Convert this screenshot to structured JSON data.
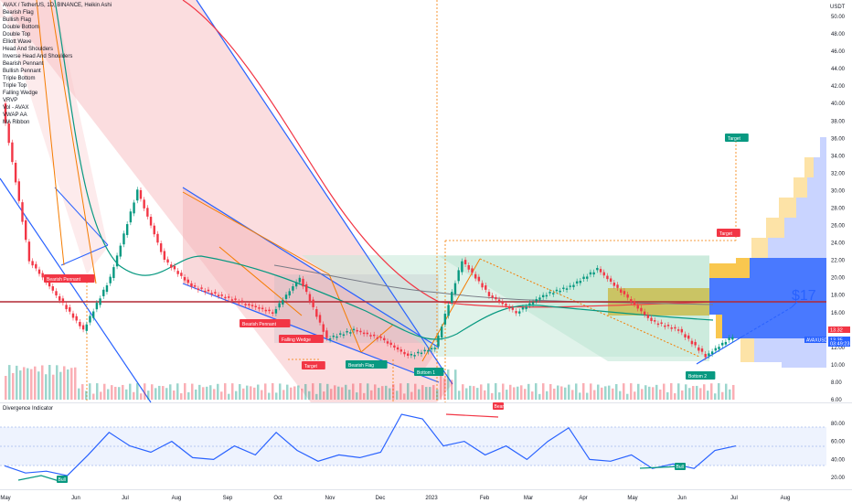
{
  "header": {
    "title": "AVAX / TetherUS, 1D, BINANCE, Heikin Ashi"
  },
  "indicators": [
    "Bearish Flag",
    "Bullish Flag",
    "Double Bottom",
    "Double Top",
    "Elliott Wave",
    "Head And Shoulders",
    "Inverse Head And Shoulders",
    "Bearish Pennant",
    "Bullish Pennant",
    "Triple Bottom",
    "Triple Top",
    "Falling Wedge",
    "VRVP",
    "Vol - AVAX",
    "VWAP AA",
    "MA Ribbon"
  ],
  "price_axis": {
    "currency": "USDT",
    "ticks": [
      "50.00",
      "48.00",
      "46.00",
      "44.00",
      "42.00",
      "40.00",
      "38.00",
      "36.00",
      "34.00",
      "32.00",
      "30.00",
      "28.00",
      "26.00",
      "24.00",
      "22.00",
      "20.00",
      "18.00",
      "16.00",
      "14.00",
      "12.00",
      "10.00",
      "8.00",
      "6.00"
    ],
    "badges": [
      {
        "text": "13.32",
        "color": "#f23645"
      },
      {
        "text": "AVAXUSDT",
        "color": "#2962ff"
      },
      {
        "text": "13.35",
        "color": "#2962ff"
      },
      {
        "text": "03:49:23",
        "color": "#2962ff"
      }
    ]
  },
  "osc_axis": {
    "ticks": [
      "80.00",
      "60.00",
      "40.00",
      "20.00"
    ]
  },
  "time_axis": {
    "labels": [
      "May",
      "Jun",
      "Jul",
      "Aug",
      "Sep",
      "Oct",
      "Nov",
      "Dec",
      "2023",
      "Feb",
      "Mar",
      "Apr",
      "May",
      "Jun",
      "Jul",
      "Aug"
    ]
  },
  "annotations": {
    "price_target_text": "$17",
    "labels": [
      {
        "text": "Bearish Pennant",
        "color": "#f23645"
      },
      {
        "text": "Bearish Pennant",
        "color": "#f23645"
      },
      {
        "text": "Falling Wedge",
        "color": "#f23645"
      },
      {
        "text": "Target",
        "color": "#f23645"
      },
      {
        "text": "Bearish Flag",
        "color": "#089981"
      },
      {
        "text": "Bottom 1",
        "color": "#089981"
      },
      {
        "text": "Target",
        "color": "#089981"
      },
      {
        "text": "Target",
        "color": "#f23645"
      },
      {
        "text": "Bottom 2",
        "color": "#089981"
      }
    ]
  },
  "oscillator": {
    "title": "Divergence Indicator",
    "labels": [
      {
        "text": "Bull",
        "color": "#089981"
      },
      {
        "text": "Bear",
        "color": "#f23645"
      },
      {
        "text": "Bull",
        "color": "#089981"
      }
    ]
  },
  "chart_data": {
    "type": "line",
    "symbol": "AVAXUSDT",
    "interval": "1D",
    "exchange": "BINANCE",
    "candle_type": "Heikin Ashi",
    "ylim": [
      6,
      50
    ],
    "x_ticks": [
      "May",
      "Jun",
      "Jul",
      "Aug",
      "Sep",
      "Oct",
      "Nov",
      "Dec",
      "2023",
      "Feb",
      "Mar",
      "Apr",
      "May",
      "Jun",
      "Jul",
      "Aug"
    ],
    "series": [
      {
        "values": [
          {
            "x": "May",
            "y": 40
          },
          {
            "x": "Jun",
            "y": 22
          },
          {
            "x": "Jun",
            "y": 18
          },
          {
            "x": "Jul",
            "y": 14
          },
          {
            "x": "Jul",
            "y": 20
          },
          {
            "x": "Aug",
            "y": 30
          },
          {
            "x": "Aug",
            "y": 22
          },
          {
            "x": "Sep",
            "y": 19
          },
          {
            "x": "Sep",
            "y": 18
          },
          {
            "x": "Oct",
            "y": 17
          },
          {
            "x": "Oct",
            "y": 16
          },
          {
            "x": "Nov",
            "y": 20
          },
          {
            "x": "Nov",
            "y": 13
          },
          {
            "x": "Dec",
            "y": 14
          },
          {
            "x": "Dec",
            "y": 13
          },
          {
            "x": "2023",
            "y": 11
          },
          {
            "x": "2023",
            "y": 12
          },
          {
            "x": "Feb",
            "y": 22
          },
          {
            "x": "Feb",
            "y": 18
          },
          {
            "x": "Mar",
            "y": 16
          },
          {
            "x": "Mar",
            "y": 18
          },
          {
            "x": "Apr",
            "y": 19
          },
          {
            "x": "Apr",
            "y": 21
          },
          {
            "x": "May",
            "y": 18
          },
          {
            "x": "May",
            "y": 15
          },
          {
            "x": "Jun",
            "y": 14
          },
          {
            "x": "Jun",
            "y": 11
          },
          {
            "x": "Jul",
            "y": 13.3
          }
        ]
      }
    ],
    "horizontal_line": 17.5,
    "oscillator_ticks": [
      80,
      60,
      40,
      20
    ],
    "oscillator_values": [
      33,
      25,
      27,
      22,
      45,
      70,
      55,
      48,
      60,
      42,
      40,
      55,
      45,
      70,
      50,
      38,
      45,
      42,
      48,
      90,
      85,
      55,
      60,
      45,
      55,
      40,
      60,
      75,
      40,
      38,
      45,
      30,
      35,
      30,
      50,
      55
    ]
  }
}
